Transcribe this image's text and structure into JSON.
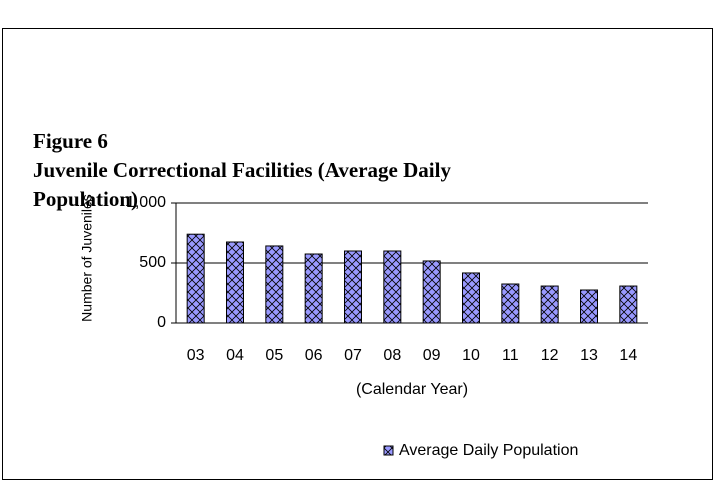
{
  "chart_data": {
    "type": "bar",
    "title": "Figure 6",
    "subtitle": "Juvenile Correctional Facilities (Average Daily Population)",
    "y_label": "Number of Juveniles",
    "x_label": "(Calendar Year)",
    "categories": [
      "03",
      "04",
      "05",
      "06",
      "07",
      "08",
      "09",
      "10",
      "11",
      "12",
      "13",
      "14"
    ],
    "series": [
      {
        "name": "Average Daily Population",
        "color": "#9999ff",
        "values": [
          740,
          675,
          642,
          575,
          600,
          600,
          517,
          417,
          325,
          308,
          275,
          308
        ]
      }
    ],
    "ylim": [
      0,
      1000
    ],
    "yticks": [
      0,
      500,
      {
        "value": 1000,
        "label": "1,000"
      }
    ],
    "grid": true,
    "legend": "bottom"
  }
}
